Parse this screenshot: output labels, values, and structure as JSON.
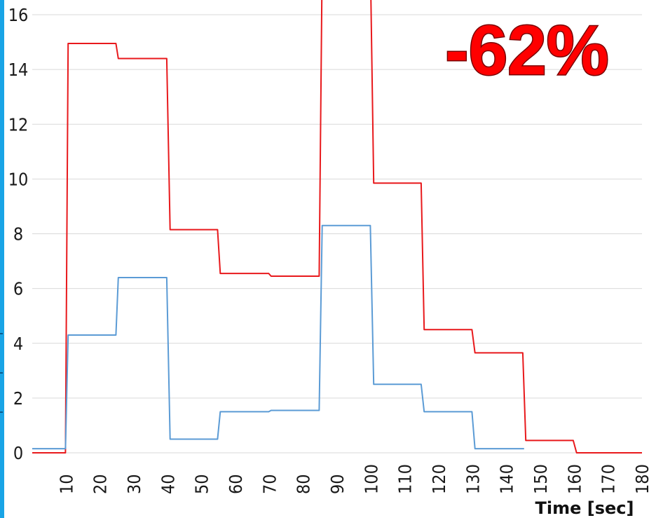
{
  "annotation": {
    "text": "-62%",
    "color": "#ff0000"
  },
  "colors": {
    "left_border": "#19a4e6",
    "grid": "#d9d9d9"
  },
  "chart_data": {
    "type": "line",
    "title": "",
    "xlabel": "Time [sec]",
    "ylabel": "",
    "xlim": [
      0,
      180
    ],
    "ylim": [
      0,
      16
    ],
    "x_ticks": [
      10,
      20,
      30,
      40,
      50,
      60,
      70,
      80,
      90,
      100,
      110,
      120,
      130,
      140,
      150,
      160,
      170,
      180
    ],
    "y_ticks": [
      0,
      2,
      4,
      6,
      8,
      10,
      12,
      14,
      16
    ],
    "grid": true,
    "series": [
      {
        "color": "#e8191c",
        "points": [
          [
            0,
            0
          ],
          [
            9.8,
            0
          ],
          [
            10.6,
            14.95
          ],
          [
            24.7,
            14.95
          ],
          [
            25.4,
            14.4
          ],
          [
            39.7,
            14.4
          ],
          [
            40.7,
            8.15
          ],
          [
            54.7,
            8.15
          ],
          [
            55.5,
            6.55
          ],
          [
            69.8,
            6.55
          ],
          [
            70.5,
            6.45
          ],
          [
            84.7,
            6.45
          ],
          [
            85.6,
            18
          ],
          [
            99.8,
            18
          ],
          [
            100.8,
            9.85
          ],
          [
            114.8,
            9.85
          ],
          [
            115.7,
            4.5
          ],
          [
            129.8,
            4.5
          ],
          [
            130.7,
            3.65
          ],
          [
            144.8,
            3.65
          ],
          [
            145.7,
            0.45
          ],
          [
            159.7,
            0.45
          ],
          [
            160.7,
            0
          ],
          [
            180,
            0
          ]
        ]
      },
      {
        "color": "#5b9bd5",
        "points": [
          [
            0,
            0.15
          ],
          [
            9.8,
            0.15
          ],
          [
            10.6,
            4.3
          ],
          [
            24.7,
            4.3
          ],
          [
            25.4,
            6.4
          ],
          [
            39.7,
            6.4
          ],
          [
            40.7,
            0.5
          ],
          [
            54.7,
            0.5
          ],
          [
            55.5,
            1.5
          ],
          [
            69.8,
            1.5
          ],
          [
            70.5,
            1.55
          ],
          [
            84.7,
            1.55
          ],
          [
            85.6,
            8.3
          ],
          [
            99.8,
            8.3
          ],
          [
            100.8,
            2.5
          ],
          [
            114.8,
            2.5
          ],
          [
            115.7,
            1.5
          ],
          [
            129.8,
            1.5
          ],
          [
            130.7,
            0.15
          ],
          [
            145.2,
            0.15
          ]
        ]
      }
    ]
  }
}
